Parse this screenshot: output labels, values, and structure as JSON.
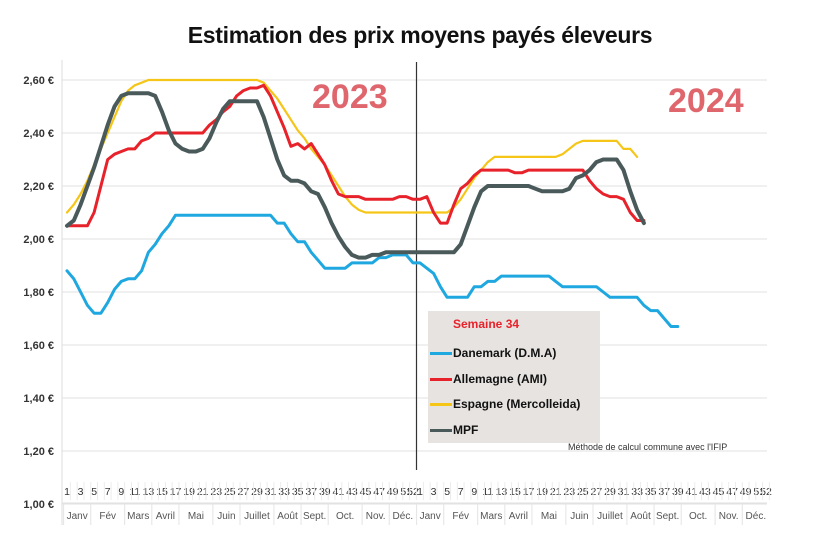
{
  "chart_data": {
    "type": "line",
    "title": "Estimation des prix moyens payés éleveurs",
    "xlabel": "",
    "ylabel": "",
    "ylim": [
      1.0,
      2.7
    ],
    "yticks": [
      1.0,
      1.2,
      1.4,
      1.6,
      1.8,
      2.0,
      2.2,
      2.4,
      2.6
    ],
    "ytick_labels": [
      "1,00 €",
      "1,20 €",
      "1,40 €",
      "1,60 €",
      "1,80 €",
      "2,00 €",
      "2,20 €",
      "2,40 €",
      "2,60 €"
    ],
    "grid": true,
    "year_labels": [
      "2023",
      "2024"
    ],
    "year_separator_after_week": 52,
    "x_weeks_per_year": 52,
    "x_tick_labels": [
      "1",
      "3",
      "5",
      "7",
      "9",
      "11",
      "13",
      "15",
      "17",
      "19",
      "21",
      "23",
      "25",
      "27",
      "29",
      "31",
      "33",
      "35",
      "37",
      "39",
      "41",
      "43",
      "45",
      "47",
      "49",
      "51",
      "52"
    ],
    "month_labels": [
      "Janv",
      "Fév",
      "Mars",
      "Avril",
      "Mai",
      "Juin",
      "Juillet",
      "Août",
      "Sept.",
      "Oct.",
      "Nov.",
      "Déc."
    ],
    "legend": {
      "title": "Semaine 34",
      "position": "lower-center"
    },
    "note": "Méthode de calcul commune avec l'IFIP",
    "series": [
      {
        "name": "Danemark (D.M.A)",
        "color": "#1fa8e0",
        "values": [
          1.88,
          1.85,
          1.8,
          1.75,
          1.72,
          1.72,
          1.76,
          1.81,
          1.84,
          1.85,
          1.85,
          1.88,
          1.95,
          1.98,
          2.02,
          2.05,
          2.09,
          2.09,
          2.09,
          2.09,
          2.09,
          2.09,
          2.09,
          2.09,
          2.09,
          2.09,
          2.09,
          2.09,
          2.09,
          2.09,
          2.09,
          2.06,
          2.06,
          2.02,
          1.99,
          1.99,
          1.95,
          1.92,
          1.89,
          1.89,
          1.89,
          1.89,
          1.91,
          1.91,
          1.91,
          1.91,
          1.93,
          1.93,
          1.94,
          1.94,
          1.94,
          1.91,
          1.91,
          1.89,
          1.87,
          1.82,
          1.78,
          1.78,
          1.78,
          1.78,
          1.82,
          1.82,
          1.84,
          1.84,
          1.86,
          1.86,
          1.86,
          1.86,
          1.86,
          1.86,
          1.86,
          1.86,
          1.84,
          1.82,
          1.82,
          1.82,
          1.82,
          1.82,
          1.82,
          1.8,
          1.78,
          1.78,
          1.78,
          1.78,
          1.78,
          1.75,
          1.73,
          1.73,
          1.7,
          1.67,
          1.67
        ]
      },
      {
        "name": "Allemagne (AMI)",
        "color": "#e8222a",
        "values": [
          2.05,
          2.05,
          2.05,
          2.05,
          2.1,
          2.2,
          2.3,
          2.32,
          2.33,
          2.34,
          2.34,
          2.37,
          2.38,
          2.4,
          2.4,
          2.4,
          2.4,
          2.4,
          2.4,
          2.4,
          2.4,
          2.43,
          2.45,
          2.48,
          2.5,
          2.54,
          2.56,
          2.57,
          2.57,
          2.58,
          2.54,
          2.48,
          2.42,
          2.35,
          2.36,
          2.34,
          2.36,
          2.32,
          2.28,
          2.22,
          2.17,
          2.16,
          2.16,
          2.16,
          2.15,
          2.15,
          2.15,
          2.15,
          2.15,
          2.16,
          2.16,
          2.15,
          2.15,
          2.16,
          2.1,
          2.06,
          2.06,
          2.13,
          2.19,
          2.21,
          2.24,
          2.26,
          2.26,
          2.26,
          2.26,
          2.26,
          2.25,
          2.25,
          2.26,
          2.26,
          2.26,
          2.26,
          2.26,
          2.26,
          2.26,
          2.26,
          2.26,
          2.22,
          2.19,
          2.17,
          2.16,
          2.16,
          2.15,
          2.1,
          2.07,
          2.07
        ]
      },
      {
        "name": "Espagne (Mercolleida)",
        "color": "#f5c518",
        "values": [
          2.1,
          2.13,
          2.17,
          2.22,
          2.28,
          2.34,
          2.4,
          2.46,
          2.52,
          2.56,
          2.58,
          2.59,
          2.6,
          2.6,
          2.6,
          2.6,
          2.6,
          2.6,
          2.6,
          2.6,
          2.6,
          2.6,
          2.6,
          2.6,
          2.6,
          2.6,
          2.6,
          2.6,
          2.6,
          2.59,
          2.56,
          2.53,
          2.49,
          2.45,
          2.41,
          2.38,
          2.34,
          2.31,
          2.28,
          2.24,
          2.2,
          2.16,
          2.13,
          2.11,
          2.1,
          2.1,
          2.1,
          2.1,
          2.1,
          2.1,
          2.1,
          2.1,
          2.1,
          2.1,
          2.1,
          2.1,
          2.1,
          2.12,
          2.15,
          2.19,
          2.23,
          2.26,
          2.29,
          2.31,
          2.31,
          2.31,
          2.31,
          2.31,
          2.31,
          2.31,
          2.31,
          2.31,
          2.31,
          2.32,
          2.34,
          2.36,
          2.37,
          2.37,
          2.37,
          2.37,
          2.37,
          2.37,
          2.34,
          2.34,
          2.31
        ]
      },
      {
        "name": "MPF",
        "color": "#4a5a5a",
        "values": [
          2.05,
          2.07,
          2.13,
          2.2,
          2.27,
          2.35,
          2.43,
          2.5,
          2.54,
          2.55,
          2.55,
          2.55,
          2.55,
          2.54,
          2.48,
          2.41,
          2.36,
          2.34,
          2.33,
          2.33,
          2.34,
          2.38,
          2.44,
          2.49,
          2.52,
          2.52,
          2.52,
          2.52,
          2.52,
          2.46,
          2.38,
          2.3,
          2.24,
          2.22,
          2.22,
          2.21,
          2.18,
          2.17,
          2.12,
          2.06,
          2.01,
          1.97,
          1.94,
          1.93,
          1.93,
          1.94,
          1.94,
          1.95,
          1.95,
          1.95,
          1.95,
          1.95,
          1.95,
          1.95,
          1.95,
          1.95,
          1.95,
          1.95,
          1.98,
          2.05,
          2.12,
          2.18,
          2.2,
          2.2,
          2.2,
          2.2,
          2.2,
          2.2,
          2.2,
          2.19,
          2.18,
          2.18,
          2.18,
          2.18,
          2.19,
          2.23,
          2.24,
          2.26,
          2.29,
          2.3,
          2.3,
          2.3,
          2.26,
          2.18,
          2.11,
          2.06
        ]
      }
    ]
  }
}
